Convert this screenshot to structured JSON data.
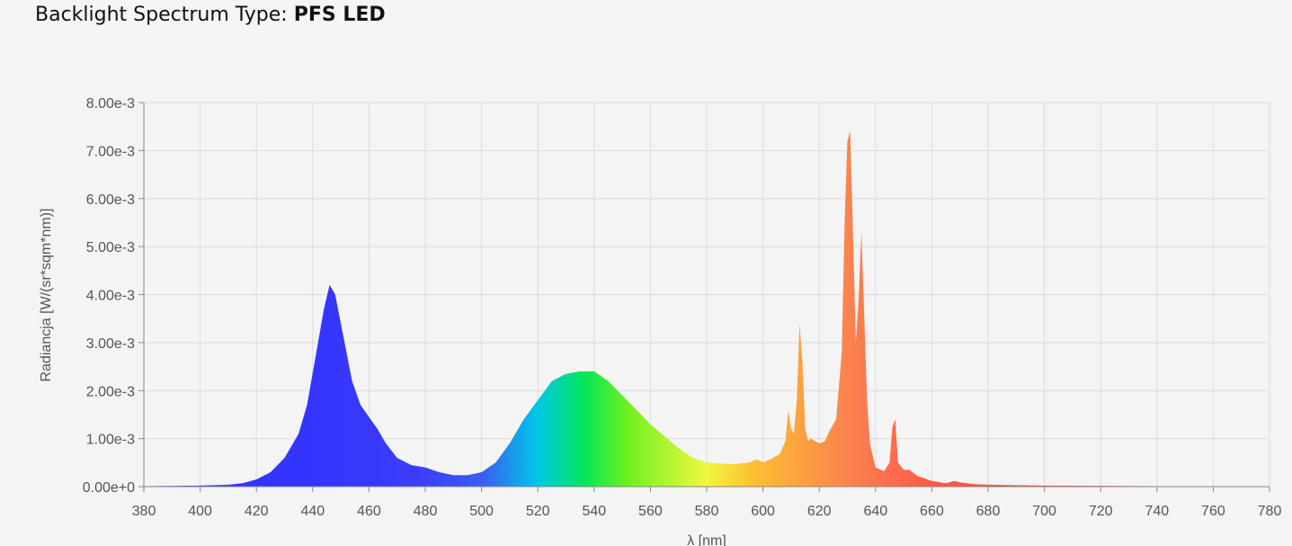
{
  "header": {
    "title_prefix": "Backlight Spectrum Type: ",
    "title_value": "PFS LED"
  },
  "chart_data": {
    "type": "area",
    "xlabel": "λ [nm]",
    "ylabel": "Radiancja [W/(sr*sqm*nm)]",
    "xlim": [
      380,
      780
    ],
    "ylim": [
      0,
      0.008
    ],
    "x_ticks": [
      "380",
      "400",
      "420",
      "440",
      "460",
      "480",
      "500",
      "520",
      "540",
      "560",
      "580",
      "600",
      "620",
      "640",
      "660",
      "680",
      "700",
      "720",
      "740",
      "760",
      "780"
    ],
    "y_ticks": [
      "0.00e+0",
      "1.00e-3",
      "2.00e-3",
      "3.00e-3",
      "4.00e-3",
      "5.00e-3",
      "6.00e-3",
      "7.00e-3",
      "8.00e-3"
    ],
    "grid": true,
    "fill": "visible-spectrum gradient",
    "x": [
      380,
      400,
      410,
      415,
      420,
      425,
      430,
      435,
      438,
      441,
      444,
      446,
      448,
      451,
      454,
      457,
      460,
      463,
      466,
      470,
      475,
      480,
      485,
      490,
      495,
      500,
      505,
      510,
      515,
      520,
      525,
      530,
      535,
      540,
      545,
      550,
      555,
      560,
      565,
      570,
      575,
      580,
      585,
      590,
      595,
      598,
      600,
      603,
      606,
      608,
      609,
      610,
      611,
      612,
      613,
      614,
      615,
      616,
      617,
      620,
      622,
      624,
      626,
      628,
      629,
      630,
      631,
      632,
      633,
      634,
      635,
      636,
      637,
      638,
      640,
      643,
      645,
      646,
      647,
      648,
      650,
      652,
      655,
      660,
      665,
      668,
      670,
      675,
      680,
      700,
      740,
      780
    ],
    "y": [
      1e-05,
      2e-05,
      4e-05,
      7e-05,
      0.00015,
      0.0003,
      0.0006,
      0.0011,
      0.0017,
      0.0027,
      0.0037,
      0.0042,
      0.004,
      0.0031,
      0.0022,
      0.0017,
      0.00145,
      0.0012,
      0.0009,
      0.0006,
      0.00045,
      0.0004,
      0.0003,
      0.00024,
      0.00024,
      0.0003,
      0.0005,
      0.0009,
      0.0014,
      0.0018,
      0.0022,
      0.00235,
      0.0024,
      0.0024,
      0.0022,
      0.0019,
      0.0016,
      0.0013,
      0.00105,
      0.0008,
      0.0006,
      0.0005,
      0.00048,
      0.00047,
      0.0005,
      0.00057,
      0.0005,
      0.00058,
      0.00068,
      0.00095,
      0.0016,
      0.0012,
      0.0011,
      0.0018,
      0.0034,
      0.0026,
      0.0012,
      0.00095,
      0.001,
      0.0009,
      0.00095,
      0.0012,
      0.0014,
      0.0028,
      0.0055,
      0.0072,
      0.0074,
      0.0052,
      0.003,
      0.0039,
      0.0053,
      0.0035,
      0.0018,
      0.0009,
      0.0004,
      0.00032,
      0.0005,
      0.00125,
      0.0014,
      0.0005,
      0.00035,
      0.00035,
      0.00022,
      0.00012,
      7e-05,
      0.00012,
      9e-05,
      5e-05,
      4e-05,
      2e-05,
      1e-05,
      5e-06
    ]
  }
}
